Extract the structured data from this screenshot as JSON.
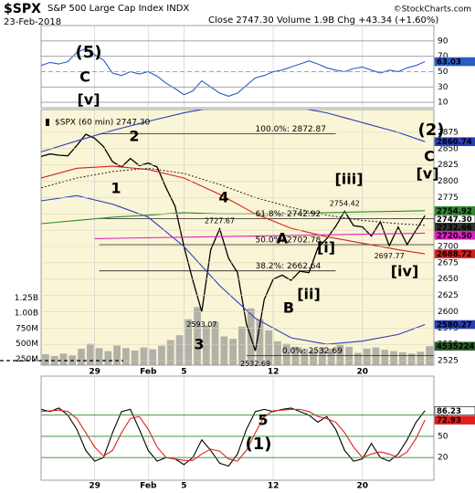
{
  "chart_data": [
    {
      "type": "line",
      "xlim": [
        0,
        44
      ],
      "ylim": [
        3,
        110
      ],
      "yticks": [
        90,
        70,
        50,
        30,
        10
      ],
      "series": [
        {
          "color": "#2a5cc4",
          "values": [
            58,
            62,
            60,
            63,
            75,
            80,
            72,
            65,
            48,
            45,
            50,
            47,
            50,
            44,
            35,
            28,
            20,
            25,
            38,
            30,
            22,
            18,
            22,
            32,
            42,
            45,
            50,
            52,
            56,
            60,
            64,
            60,
            55,
            52,
            50,
            54,
            56,
            52,
            48,
            52,
            50,
            55,
            58,
            63.03
          ]
        }
      ],
      "annotations": [
        {
          "text": "(5)",
          "color": "#000000"
        },
        {
          "text": "C",
          "color": "#9a2ee0"
        },
        {
          "text": "[v]",
          "color": "#a01010"
        }
      ]
    },
    {
      "type": "line",
      "title": "$SPX",
      "subtitle": "S&P 500 Large Cap Index INDX",
      "date": "23-Feb-2018",
      "summary": "Close 2747.30  Volume 1.9B  Chg +43.34 (+1.60%)",
      "credit": "©StockCharts.com",
      "legend_label": "$SPX (60 min) 2747.30",
      "xlim": [
        0,
        44
      ],
      "xticks": [
        {
          "value": 6,
          "label": "29"
        },
        {
          "value": 12,
          "label": "Feb"
        },
        {
          "value": 16,
          "label": "5"
        },
        {
          "value": 26,
          "label": "12"
        },
        {
          "value": 36,
          "label": "20"
        }
      ],
      "ylim": [
        2518,
        2910
      ],
      "yticks": [
        2525,
        2550,
        2575,
        2600,
        2625,
        2650,
        2675,
        2700,
        2725,
        2750,
        2775,
        2800,
        2825,
        2850,
        2875
      ],
      "grid": true,
      "series": [
        {
          "color": "#000000",
          "last_label": "2747.30",
          "values": [
            2838,
            2842,
            2840,
            2839,
            2855,
            2872,
            2866,
            2853,
            2830,
            2822,
            2835,
            2824,
            2828,
            2822,
            2790,
            2762,
            2700,
            2648,
            2600,
            2695,
            2727,
            2682,
            2660,
            2581,
            2540,
            2619,
            2650,
            2656,
            2648,
            2662,
            2660,
            2698,
            2712,
            2731,
            2754,
            2732,
            2730,
            2716,
            2738,
            2701,
            2730,
            2703,
            2725,
            2747.3
          ]
        },
        {
          "color": "#2a3fb8",
          "x": [
            0,
            4,
            8,
            12,
            16,
            20,
            24,
            28,
            32,
            36,
            40,
            43
          ],
          "values": [
            2845,
            2862,
            2878,
            2892,
            2905,
            2915,
            2918,
            2915,
            2905,
            2890,
            2875,
            2860.74
          ]
        },
        {
          "color": "#2a3fb8",
          "x": [
            0,
            4,
            8,
            12,
            16,
            20,
            24,
            28,
            32,
            36,
            40,
            43
          ],
          "values": [
            2770,
            2778,
            2765,
            2745,
            2700,
            2640,
            2590,
            2560,
            2550,
            2555,
            2565,
            2580.27
          ]
        },
        {
          "color": "#d42020",
          "x": [
            0,
            4,
            8,
            12,
            16,
            20,
            24,
            28,
            32,
            36,
            40,
            43
          ],
          "values": [
            2805,
            2820,
            2823,
            2818,
            2805,
            2780,
            2750,
            2728,
            2715,
            2705,
            2695,
            2688.72
          ]
        },
        {
          "color": "#2e8b2e",
          "x": [
            0,
            4,
            8,
            12,
            16,
            20,
            24,
            28,
            32,
            36,
            40,
            43
          ],
          "values": [
            2735,
            2740,
            2745,
            2748,
            2752,
            2750,
            2750,
            2750,
            2752,
            2753,
            2754,
            2754.92
          ]
        },
        {
          "color": "#333333",
          "style": "dotted",
          "x": [
            0,
            4,
            8,
            12,
            16,
            20,
            24,
            28,
            32,
            36,
            40,
            43
          ],
          "values": [
            2790,
            2805,
            2815,
            2820,
            2812,
            2795,
            2775,
            2760,
            2748,
            2740,
            2735,
            2732.66
          ]
        },
        {
          "color": "#e020c0",
          "x": [
            6,
            43
          ],
          "values": [
            2712,
            2720.5
          ],
          "last_label": "2720.50"
        }
      ],
      "volume": {
        "color": "#9a9a9a",
        "ylim": [
          150,
          4330
        ],
        "note": 4535224,
        "yticks": [
          {
            "value": 1250,
            "label": "1.25B"
          },
          {
            "value": 1000,
            "label": "1.00B"
          },
          {
            "value": 750,
            "label": "750M"
          },
          {
            "value": 500,
            "label": "500M"
          },
          {
            "value": 250,
            "label": "250M"
          }
        ],
        "values": [
          330,
          300,
          340,
          310,
          420,
          500,
          430,
          380,
          470,
          430,
          390,
          440,
          410,
          470,
          560,
          640,
          900,
          1100,
          800,
          860,
          620,
          580,
          780,
          1080,
          900,
          720,
          540,
          500,
          450,
          420,
          400,
          440,
          420,
          480,
          450,
          350,
          420,
          440,
          400,
          380,
          360,
          340,
          370,
          460
        ]
      },
      "fib_levels": [
        {
          "label": "100.0%: 2872.87",
          "value": 2872.87
        },
        {
          "label": "61.8%: 2742.92",
          "value": 2742.92
        },
        {
          "label": "50.0%: 2702.78",
          "value": 2702.78
        },
        {
          "label": "38.2%: 2662.64",
          "value": 2662.64
        },
        {
          "label": "0.0%: 2532.69",
          "value": 2532.69
        }
      ],
      "price_labels": [
        {
          "x": 18,
          "value": 2593.07
        },
        {
          "x": 20,
          "value": 2727.67
        },
        {
          "x": 24,
          "value": 2532.69
        },
        {
          "x": 34,
          "value": 2754.42
        },
        {
          "x": 39,
          "value": 2697.77
        }
      ],
      "annotations": [
        {
          "text": "2",
          "color": "#9a2ee0"
        },
        {
          "text": "1",
          "color": "#9a2ee0"
        },
        {
          "text": "4",
          "color": "#9a2ee0"
        },
        {
          "text": "3",
          "color": "#9a2ee0"
        },
        {
          "text": "A",
          "color": "#9a2ee0"
        },
        {
          "text": "B",
          "color": "#9a2ee0"
        },
        {
          "text": "C",
          "color": "#9a2ee0"
        },
        {
          "text": "(2)",
          "color": "#000000"
        },
        {
          "text": "[iii]",
          "color": "#a01010"
        },
        {
          "text": "[i]",
          "color": "#a01010"
        },
        {
          "text": "[ii]",
          "color": "#a01010"
        },
        {
          "text": "[iv]",
          "color": "#a01010"
        },
        {
          "text": "[v]",
          "color": "#a01010"
        }
      ]
    },
    {
      "type": "line",
      "xlim": [
        0,
        44
      ],
      "ylim": [
        -12,
        135
      ],
      "yticks": [
        80,
        50,
        20
      ],
      "ref_color": "#2e8b2e",
      "series": [
        {
          "color": "#000000",
          "values": [
            88,
            85,
            90,
            80,
            60,
            30,
            15,
            20,
            55,
            85,
            88,
            60,
            30,
            15,
            20,
            18,
            10,
            20,
            45,
            30,
            12,
            8,
            25,
            60,
            85,
            88,
            85,
            88,
            90,
            85,
            80,
            70,
            78,
            60,
            30,
            15,
            18,
            40,
            20,
            15,
            25,
            45,
            70,
            86.23
          ]
        },
        {
          "color": "#e02020",
          "values": [
            85,
            86,
            87,
            85,
            75,
            55,
            35,
            22,
            30,
            55,
            75,
            78,
            60,
            35,
            20,
            18,
            16,
            16,
            25,
            32,
            29,
            18,
            15,
            30,
            55,
            78,
            86,
            87,
            88,
            88,
            85,
            78,
            75,
            70,
            55,
            35,
            20,
            25,
            28,
            25,
            20,
            28,
            47,
            72.93
          ]
        }
      ],
      "annotations": [
        {
          "text": "5",
          "color": "#9a2ee0"
        },
        {
          "text": "(1)",
          "color": "#000000"
        }
      ]
    }
  ]
}
